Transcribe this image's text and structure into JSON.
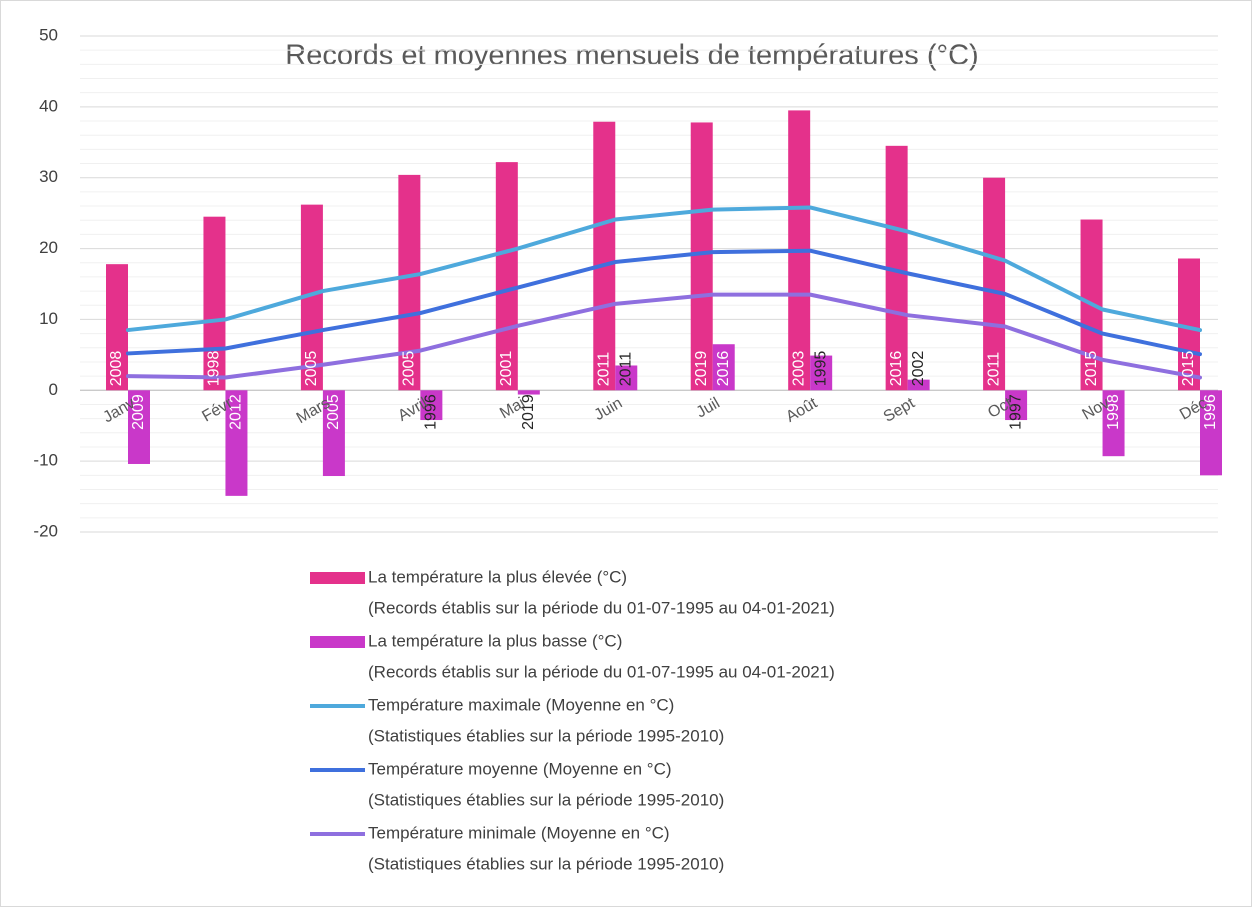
{
  "chart_data": {
    "type": "bar_line",
    "title": "Records et moyennes mensuels de températures (°C)",
    "categories": [
      "Janv",
      "Févr",
      "Mars",
      "Avril",
      "Mai",
      "Juin",
      "Juil",
      "Août",
      "Sept",
      "Oct",
      "Nov",
      "Déc"
    ],
    "ylim": [
      -20,
      50
    ],
    "yticks": [
      -20,
      -10,
      0,
      10,
      20,
      30,
      40,
      50
    ],
    "grid": true,
    "legend": "bottom",
    "series": [
      {
        "name": "La température la plus élevée (°C)",
        "description": "(Records établis sur la période du 01-07-1995 au 04-01-2021)",
        "kind": "bar",
        "color": "#e4318b",
        "values": [
          17.8,
          24.5,
          26.2,
          30.4,
          32.2,
          37.9,
          37.8,
          39.5,
          34.5,
          30.0,
          24.1,
          18.6
        ],
        "labels": [
          "2008",
          "1998",
          "2005",
          "2005",
          "2001",
          "2011",
          "2019",
          "2003",
          "2016",
          "2011",
          "2015",
          "2015"
        ]
      },
      {
        "name": "La température la plus basse (°C)",
        "description": "(Records établis sur la période du 01-07-1995 au 04-01-2021)",
        "kind": "bar",
        "color": "#c938c9",
        "values": [
          -10.4,
          -14.9,
          -12.1,
          -4.2,
          -0.6,
          3.5,
          6.5,
          4.9,
          1.5,
          -4.2,
          -9.3,
          -12.0
        ],
        "labels": [
          "2009",
          "2012",
          "2005",
          "1996",
          "2019",
          "2011",
          "2016",
          "1995",
          "2002",
          "1997",
          "1998",
          "1996"
        ]
      },
      {
        "name": "Température maximale (Moyenne en °C)",
        "description": "(Statistiques établies sur la période 1995-2010)",
        "kind": "line",
        "color": "#4ea9dc",
        "values": [
          8.5,
          10.0,
          14.0,
          16.4,
          20.0,
          24.1,
          25.5,
          25.8,
          22.4,
          18.3,
          11.4,
          8.5
        ]
      },
      {
        "name": "Température moyenne (Moyenne en °C)",
        "description": "(Statistiques établies sur la période 1995-2010)",
        "kind": "line",
        "color": "#3f70dd",
        "values": [
          5.2,
          5.9,
          8.5,
          10.9,
          14.5,
          18.1,
          19.5,
          19.7,
          16.5,
          13.6,
          8.0,
          5.1
        ]
      },
      {
        "name": "Température minimale (Moyenne en °C)",
        "description": "(Statistiques établies sur la période 1995-2010)",
        "kind": "line",
        "color": "#8e6fdf",
        "values": [
          2.0,
          1.8,
          3.6,
          5.6,
          9.1,
          12.2,
          13.5,
          13.5,
          10.6,
          9.0,
          4.3,
          1.8
        ]
      }
    ]
  }
}
